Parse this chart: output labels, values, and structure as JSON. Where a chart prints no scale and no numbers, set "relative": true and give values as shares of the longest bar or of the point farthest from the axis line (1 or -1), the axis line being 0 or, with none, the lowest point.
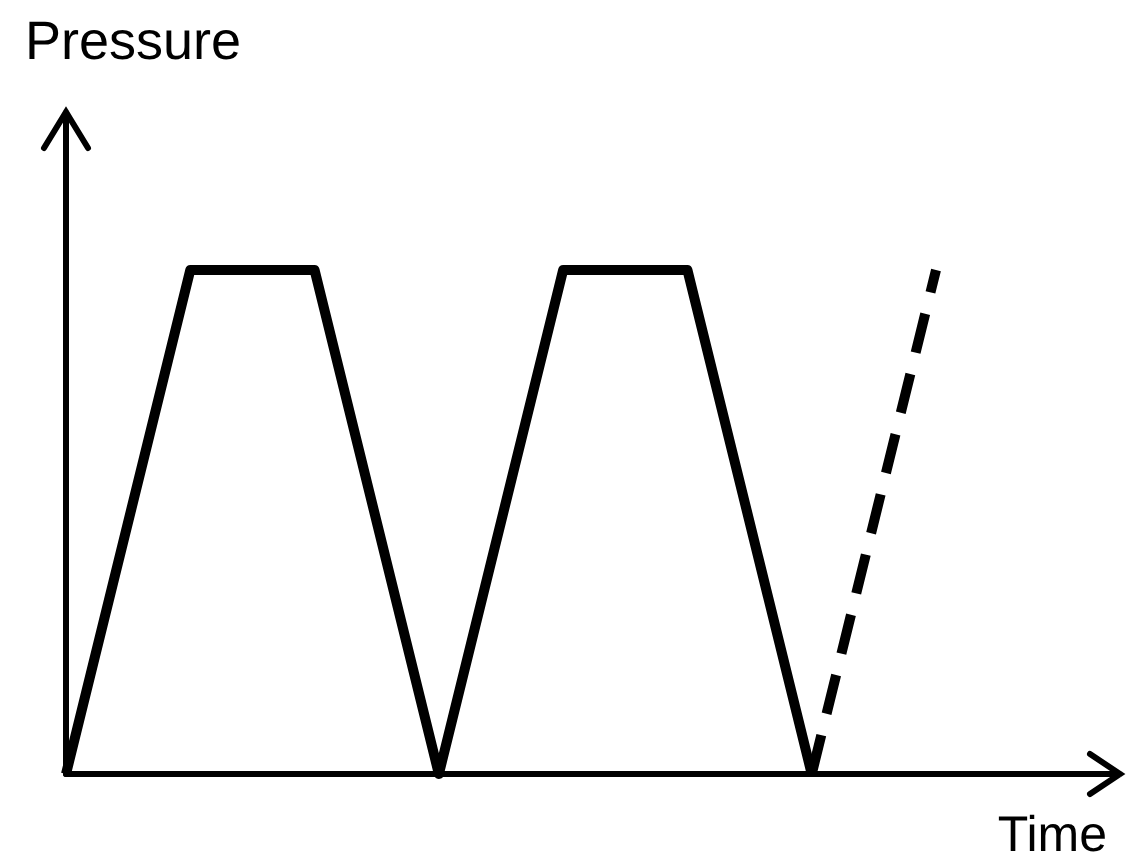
{
  "chart_data": {
    "type": "line",
    "xlabel": "Time",
    "ylabel": "Pressure",
    "relative": true,
    "categories": [
      null,
      null,
      null,
      null,
      null,
      null,
      null,
      null
    ],
    "series": [
      {
        "color": "#000000",
        "line_style": "solid",
        "values": [
          0,
          1,
          1,
          0,
          1,
          1,
          0,
          null
        ]
      },
      {
        "color": "#000000",
        "line_style": "dashed",
        "values": [
          null,
          null,
          null,
          null,
          null,
          null,
          0,
          1
        ]
      }
    ]
  }
}
